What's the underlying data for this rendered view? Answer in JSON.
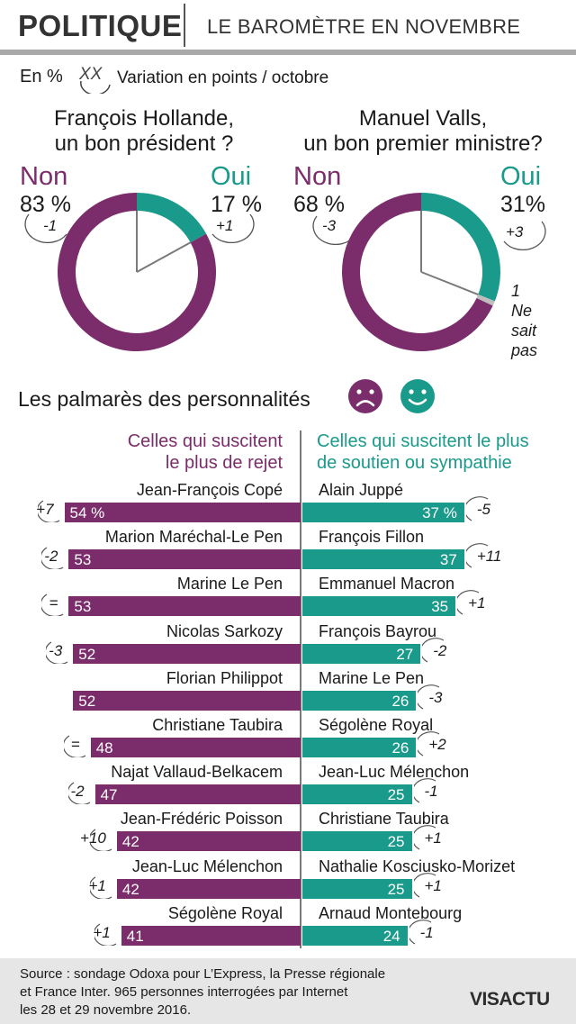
{
  "header": {
    "title": "POLITIQUE",
    "subtitle": "LE BAROMÈTRE EN NOVEMBRE"
  },
  "legend": {
    "unit": "En %",
    "symbol": "XX",
    "variation_label": "Variation en points / octobre"
  },
  "colors": {
    "purple": "#7b2c6a",
    "teal": "#1a9a8b",
    "grey": "#7a7a7a"
  },
  "donut_hollande": {
    "question_line1": "François Hollande,",
    "question_line2": "un bon président ?",
    "non_label": "Non",
    "non_value": "83 %",
    "non_change": "-1",
    "oui_label": "Oui",
    "oui_value": "17 %",
    "oui_change": "+1"
  },
  "donut_valls": {
    "question_line1": "Manuel Valls,",
    "question_line2": "un bon premier ministre?",
    "non_label": "Non",
    "non_value": "68 %",
    "non_change": "-3",
    "oui_label": "Oui",
    "oui_value": "31%",
    "oui_change": "+3",
    "ns_value": "1",
    "ns_line1": "Ne",
    "ns_line2": "sait",
    "ns_line3": "pas"
  },
  "palmares": {
    "title": "Les palmarès des personnalités",
    "sad_icon": "sad-face-icon",
    "happy_icon": "happy-face-icon",
    "left_head_line1": "Celles qui suscitent",
    "left_head_line2": "le plus de rejet",
    "right_head_line1": "Celles qui suscitent le plus",
    "right_head_line2": "de soutien ou sympathie"
  },
  "chart_data": [
    {
      "type": "pie",
      "title": "François Hollande, un bon président ?",
      "slices": [
        {
          "label": "Non",
          "value": 83,
          "change": "-1"
        },
        {
          "label": "Oui",
          "value": 17,
          "change": "+1"
        }
      ]
    },
    {
      "type": "pie",
      "title": "Manuel Valls, un bon premier ministre?",
      "slices": [
        {
          "label": "Non",
          "value": 68,
          "change": "-3"
        },
        {
          "label": "Oui",
          "value": 31,
          "change": "+3"
        },
        {
          "label": "Ne sait pas",
          "value": 1
        }
      ]
    },
    {
      "type": "bar",
      "title": "Celles qui suscitent le plus de rejet",
      "categories": [
        "Jean-François Copé",
        "Marion Maréchal-Le Pen",
        "Marine Le Pen",
        "Nicolas Sarkozy",
        "Florian Philippot",
        "Christiane Taubira",
        "Najat Vallaud-Belkacem",
        "Jean-Frédéric Poisson",
        "Jean-Luc Mélenchon",
        "Ségolène Royal"
      ],
      "values": [
        54,
        53,
        53,
        52,
        52,
        48,
        47,
        42,
        42,
        41
      ],
      "labels": [
        "54 %",
        "53",
        "53",
        "52",
        "52",
        "48",
        "47",
        "42",
        "42",
        "41"
      ],
      "changes": [
        "+7",
        "-2",
        "=",
        "-3",
        "",
        "=",
        "-2",
        "+10",
        "+1",
        "+1"
      ]
    },
    {
      "type": "bar",
      "title": "Celles qui suscitent le plus de soutien ou sympathie",
      "categories": [
        "Alain Juppé",
        "François Fillon",
        "Emmanuel Macron",
        "François Bayrou",
        "Marine Le Pen",
        "Ségolène Royal",
        "Jean-Luc Mélenchon",
        "Christiane Taubira",
        "Nathalie Kosciusko-Morizet",
        "Arnaud Montebourg"
      ],
      "values": [
        37,
        37,
        35,
        27,
        26,
        26,
        25,
        25,
        25,
        24
      ],
      "labels": [
        "37 %",
        "37",
        "35",
        "27",
        "26",
        "26",
        "25",
        "25",
        "25",
        "24"
      ],
      "changes": [
        "-5",
        "+11",
        "+1",
        "-2",
        "-3",
        "+2",
        "-1",
        "+1",
        "+1",
        "-1"
      ]
    }
  ],
  "footer": {
    "source_line1": "Source : sondage Odoxa pour L’Express, la Presse régionale",
    "source_line2": "et France Inter. 965 personnes interrogées par Internet",
    "source_line3": "les 28 et 29 novembre 2016.",
    "logo": "VISACTU"
  }
}
